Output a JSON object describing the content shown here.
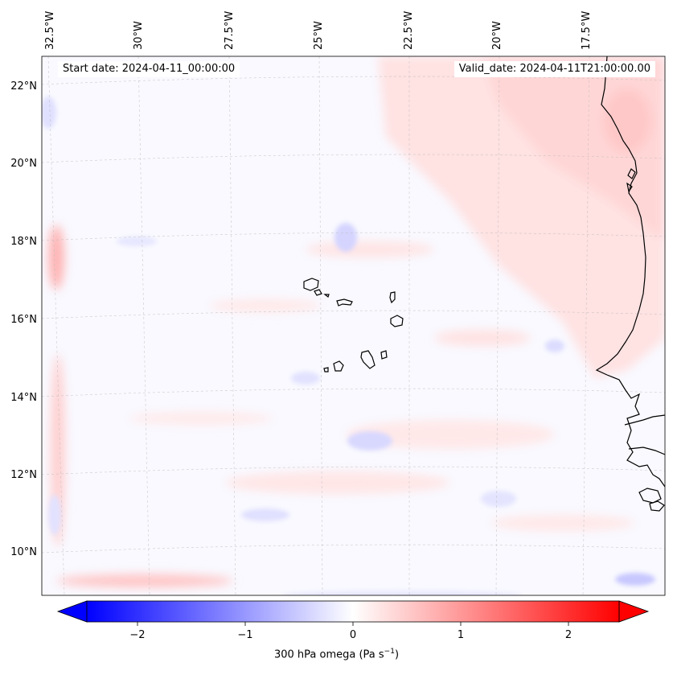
{
  "map": {
    "start_label": "Start date: 2024-04-11_00:00:00",
    "valid_label": "Valid_date: 2024-04-11T21:00:00.00",
    "lon_labels": [
      "32.5°W",
      "30°W",
      "27.5°W",
      "25°W",
      "22.5°W",
      "20°W",
      "17.5°W"
    ],
    "lat_labels": [
      "22°N",
      "20°N",
      "18°N",
      "16°N",
      "14°N",
      "12°N",
      "10°N"
    ],
    "islands": [
      "Santo Antão",
      "São Vicente",
      "Santa Luzia",
      "São Nicolau",
      "Sal",
      "Boa Vista",
      "Maio",
      "Santiago",
      "Fogo",
      "Brava"
    ],
    "colors": {
      "negative": "#0000ff",
      "zero": "#ffffff",
      "positive": "#ff0000",
      "coast": "#000000"
    }
  },
  "colorbar": {
    "ticks": [
      -2,
      -1,
      0,
      1,
      2
    ],
    "tick_labels": [
      "−2",
      "−1",
      "0",
      "1",
      "2"
    ],
    "label_text": "300 hPa omega (Pa s",
    "label_exp": "−1",
    "label_close": ")",
    "range": [
      -2.6,
      2.6
    ]
  }
}
